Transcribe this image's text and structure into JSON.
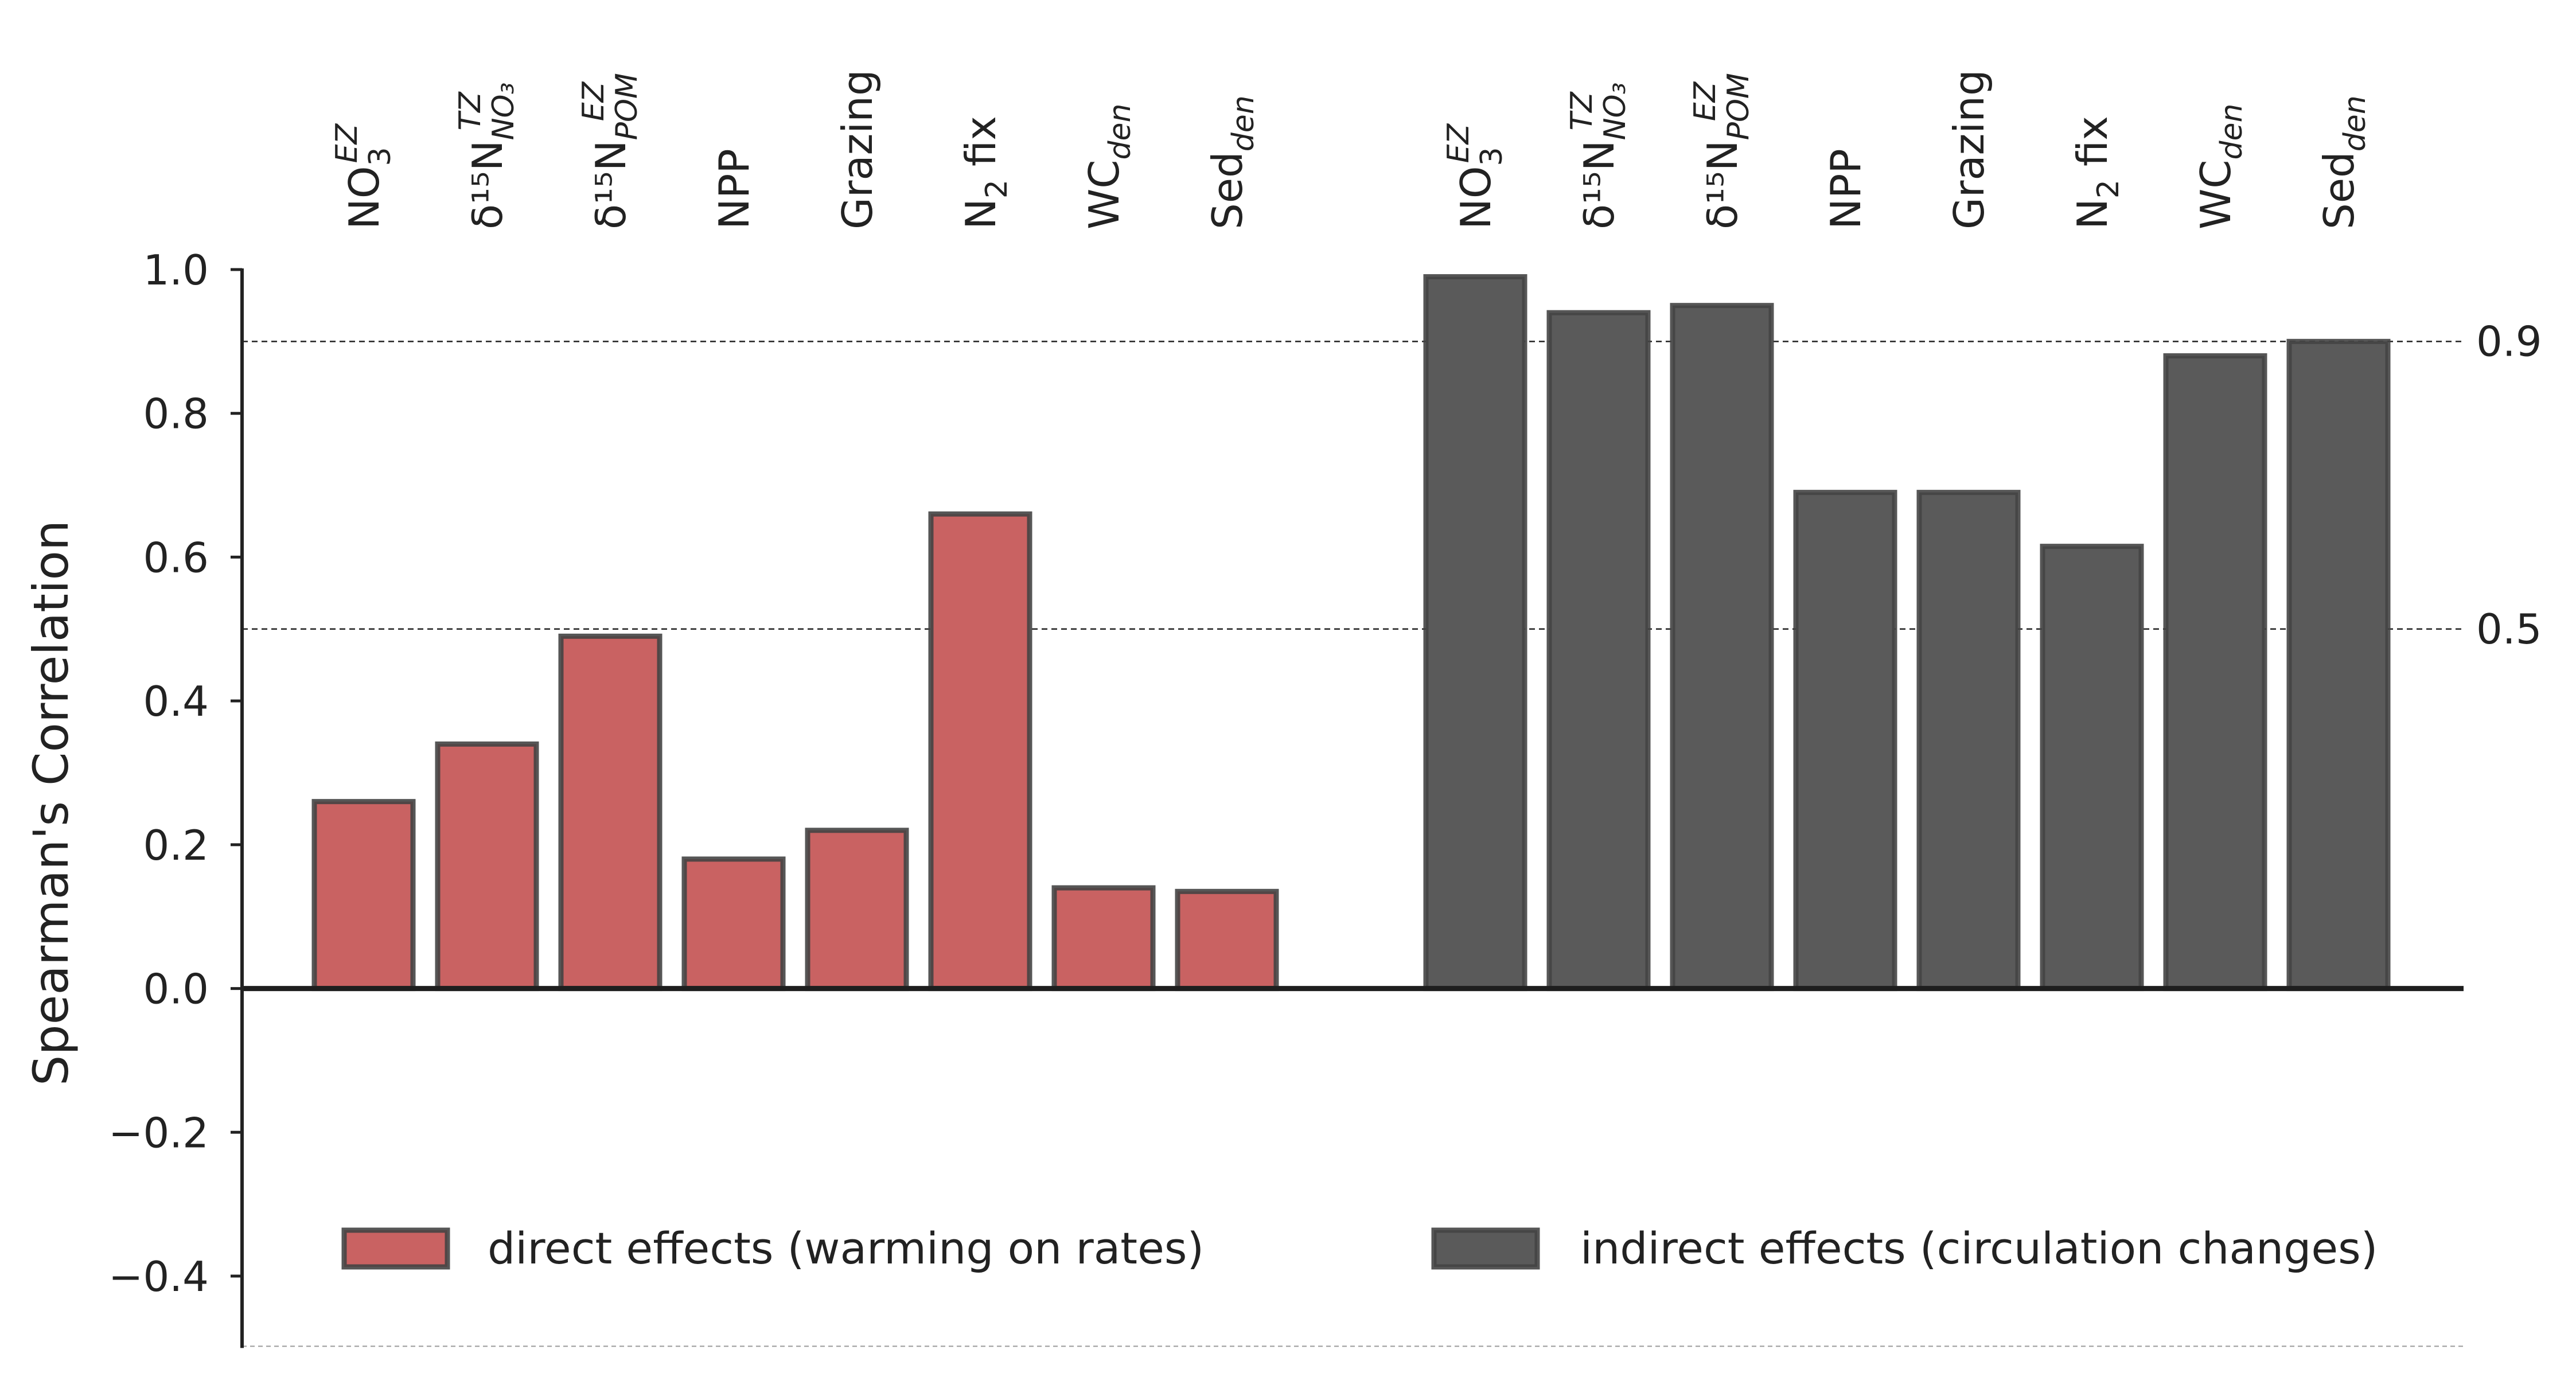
{
  "chart_data": {
    "type": "bar",
    "ylabel": "Spearman's Correlation",
    "ylim": [
      -0.5,
      1.0
    ],
    "yticks": [
      "1.0",
      "0.8",
      "0.6",
      "0.4",
      "0.2",
      "0.0",
      "−0.2",
      "−0.4"
    ],
    "ytick_values": [
      1.0,
      0.8,
      0.6,
      0.4,
      0.2,
      0.0,
      -0.2,
      -0.4
    ],
    "reference_lines": [
      {
        "value": 0.9,
        "label": "0.9"
      },
      {
        "value": 0.5,
        "label": "0.5"
      }
    ],
    "categories": [
      {
        "main": "NO",
        "sub": "3",
        "sup": "EZ"
      },
      {
        "main": "δ¹⁵N",
        "sub": "NO₃",
        "sup": "TZ"
      },
      {
        "main": "δ¹⁵N",
        "sub": "POM",
        "sup": "EZ"
      },
      {
        "main": "NPP"
      },
      {
        "main": "Grazing"
      },
      {
        "main": "N",
        "sub": "2",
        "after": " fix"
      },
      {
        "main": "WC",
        "sub": "den"
      },
      {
        "main": "Sed",
        "sub": "den"
      }
    ],
    "series": [
      {
        "name": "direct effects (warming on rates)",
        "color": "#c96262",
        "values": [
          0.26,
          0.34,
          0.49,
          0.18,
          0.22,
          0.66,
          0.14,
          0.135
        ]
      },
      {
        "name": "indirect effects (circulation changes)",
        "color": "#5a5a5a",
        "values": [
          0.99,
          0.94,
          0.95,
          0.69,
          0.69,
          0.615,
          0.88,
          0.9
        ]
      }
    ],
    "legend_position": "bottom"
  }
}
